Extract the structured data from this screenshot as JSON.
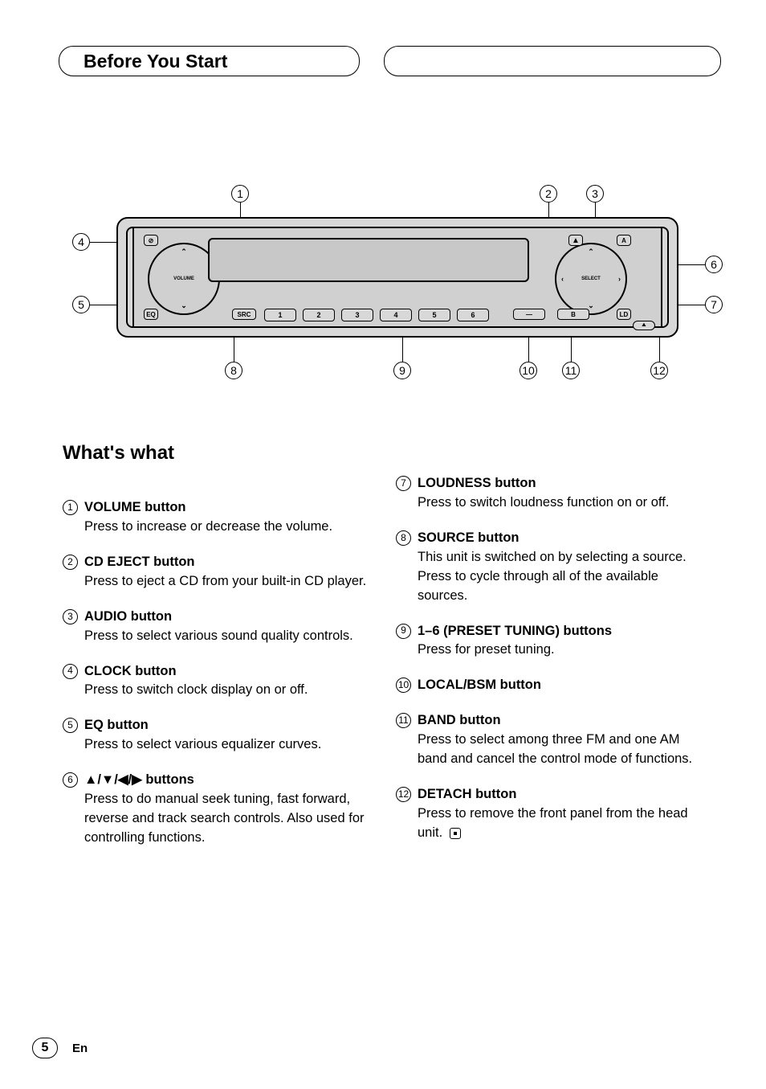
{
  "header": {
    "title": "Before You Start"
  },
  "section": {
    "title": "What's what"
  },
  "diagram": {
    "labels": {
      "volume_text": "VOLUME",
      "select_text": "SELECT",
      "presets": [
        "1",
        "2",
        "3",
        "4",
        "5",
        "6"
      ],
      "buttons": {
        "clock": "⊘",
        "eq": "EQ",
        "src": "SRC",
        "eject": "▲",
        "audio": "A",
        "ld": "LD",
        "local": "—",
        "band": "B",
        "detach": "⯀"
      }
    },
    "callouts": [
      "1",
      "2",
      "3",
      "4",
      "5",
      "6",
      "7",
      "8",
      "9",
      "10",
      "11",
      "12"
    ]
  },
  "items_left": [
    {
      "n": "1",
      "title": "VOLUME button",
      "desc": "Press to increase or decrease the volume."
    },
    {
      "n": "2",
      "title": "CD EJECT button",
      "desc": "Press to eject a CD from your built-in CD player."
    },
    {
      "n": "3",
      "title": "AUDIO button",
      "desc": "Press to select various sound quality controls."
    },
    {
      "n": "4",
      "title": "CLOCK button",
      "desc": "Press to switch clock display on or off."
    },
    {
      "n": "5",
      "title": "EQ button",
      "desc": "Press to select various equalizer curves."
    },
    {
      "n": "6",
      "title": "▲/▼/◀/▶ buttons",
      "desc": "Press to do manual seek tuning, fast forward, reverse and track search controls. Also used for controlling functions."
    }
  ],
  "items_right": [
    {
      "n": "7",
      "title": "LOUDNESS button",
      "desc": "Press to switch loudness function on or off."
    },
    {
      "n": "8",
      "title": "SOURCE button",
      "desc": "This unit is switched on by selecting a source. Press to cycle through all of the available sources."
    },
    {
      "n": "9",
      "title": "1–6 (PRESET TUNING) buttons",
      "desc": "Press for preset tuning."
    },
    {
      "n": "10",
      "title": "LOCAL/BSM button",
      "desc": ""
    },
    {
      "n": "11",
      "title": "BAND button",
      "desc": "Press to select among three FM and one AM band and cancel the control mode of functions."
    },
    {
      "n": "12",
      "title": "DETACH button",
      "desc": "Press to remove the front panel from the head unit.",
      "end_mark": true
    }
  ],
  "footer": {
    "page": "5",
    "lang": "En"
  },
  "colors": {
    "bg": "#ffffff",
    "text": "#000000",
    "device_fill": "#d8d8d8"
  }
}
